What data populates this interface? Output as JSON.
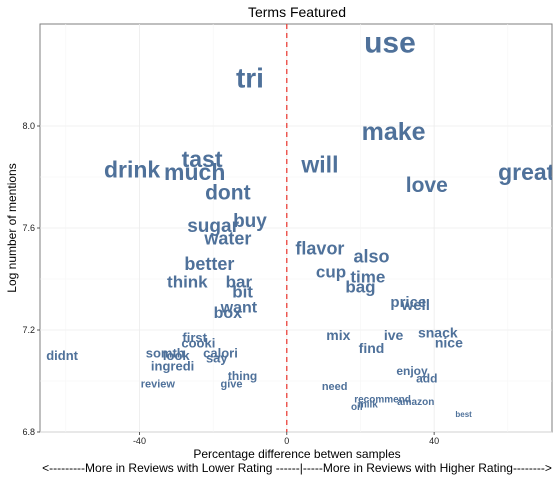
{
  "chart_data": {
    "type": "scatter",
    "title": "Terms Featured",
    "xlabel": "Percentage difference betwen samples",
    "xlabel_sub": "<---------More in Reviews with Lower Rating ------|-----More in Reviews with Higher Rating-------->",
    "ylabel": "Log number of mentions",
    "xlim": [
      -67,
      72
    ],
    "ylim": [
      6.8,
      8.4
    ],
    "x_ticks": [
      -40,
      0,
      40
    ],
    "x_tick_labels": [
      "-40",
      "0",
      "40"
    ],
    "y_ticks": [
      6.8,
      7.2,
      7.6,
      8.0
    ],
    "y_tick_labels": [
      "6.8",
      "7.2",
      "7.6",
      "8.0"
    ],
    "reference_line": {
      "x": 0,
      "color": "#e8322b",
      "style": "dashed"
    },
    "grid": true,
    "points": [
      {
        "label": "use",
        "x": 28,
        "y": 8.33,
        "size": 30
      },
      {
        "label": "tri",
        "x": -10,
        "y": 8.19,
        "size": 28
      },
      {
        "label": "make",
        "x": 29,
        "y": 7.98,
        "size": 25
      },
      {
        "label": "great",
        "x": 65,
        "y": 7.82,
        "size": 23
      },
      {
        "label": "tast",
        "x": -23,
        "y": 7.87,
        "size": 23
      },
      {
        "label": "drink",
        "x": -42,
        "y": 7.83,
        "size": 23
      },
      {
        "label": "much",
        "x": -25,
        "y": 7.82,
        "size": 23
      },
      {
        "label": "will",
        "x": 9,
        "y": 7.85,
        "size": 23
      },
      {
        "label": "love",
        "x": 38,
        "y": 7.77,
        "size": 21
      },
      {
        "label": "dont",
        "x": -16,
        "y": 7.74,
        "size": 21
      },
      {
        "label": "buy",
        "x": -10,
        "y": 7.63,
        "size": 19
      },
      {
        "label": "sugar",
        "x": -20,
        "y": 7.61,
        "size": 19
      },
      {
        "label": "water",
        "x": -16,
        "y": 7.56,
        "size": 18
      },
      {
        "label": "flavor",
        "x": 9,
        "y": 7.52,
        "size": 18
      },
      {
        "label": "also",
        "x": 23,
        "y": 7.49,
        "size": 18
      },
      {
        "label": "better",
        "x": -21,
        "y": 7.46,
        "size": 18
      },
      {
        "label": "cup",
        "x": 12,
        "y": 7.43,
        "size": 17
      },
      {
        "label": "time",
        "x": 22,
        "y": 7.41,
        "size": 17
      },
      {
        "label": "think",
        "x": -27,
        "y": 7.39,
        "size": 17
      },
      {
        "label": "bar",
        "x": -13,
        "y": 7.39,
        "size": 17
      },
      {
        "label": "bag",
        "x": 20,
        "y": 7.37,
        "size": 17
      },
      {
        "label": "bit",
        "x": -12,
        "y": 7.35,
        "size": 17
      },
      {
        "label": "price",
        "x": 33,
        "y": 7.31,
        "size": 15
      },
      {
        "label": "well",
        "x": 35,
        "y": 7.3,
        "size": 15
      },
      {
        "label": "want",
        "x": -13,
        "y": 7.29,
        "size": 16
      },
      {
        "label": "box",
        "x": -16,
        "y": 7.27,
        "size": 16
      },
      {
        "label": "snack",
        "x": 41,
        "y": 7.19,
        "size": 14
      },
      {
        "label": "mix",
        "x": 14,
        "y": 7.18,
        "size": 14
      },
      {
        "label": "ive",
        "x": 29,
        "y": 7.18,
        "size": 14
      },
      {
        "label": "first",
        "x": -25,
        "y": 7.17,
        "size": 13
      },
      {
        "label": "cooki",
        "x": -24,
        "y": 7.15,
        "size": 13
      },
      {
        "label": "nice",
        "x": 44,
        "y": 7.15,
        "size": 14
      },
      {
        "label": "find",
        "x": 23,
        "y": 7.13,
        "size": 14
      },
      {
        "label": "calori",
        "x": -18,
        "y": 7.11,
        "size": 13
      },
      {
        "label": "somth",
        "x": -33,
        "y": 7.11,
        "size": 13
      },
      {
        "label": "look",
        "x": -30,
        "y": 7.1,
        "size": 13
      },
      {
        "label": "didnt",
        "x": -61,
        "y": 7.1,
        "size": 13
      },
      {
        "label": "say",
        "x": -19,
        "y": 7.09,
        "size": 13
      },
      {
        "label": "ingredi",
        "x": -31,
        "y": 7.06,
        "size": 13
      },
      {
        "label": "enjoy",
        "x": 34,
        "y": 7.04,
        "size": 12
      },
      {
        "label": "thing",
        "x": -12,
        "y": 7.02,
        "size": 12
      },
      {
        "label": "add",
        "x": 38,
        "y": 7.01,
        "size": 12
      },
      {
        "label": "review",
        "x": -35,
        "y": 6.99,
        "size": 11
      },
      {
        "label": "give",
        "x": -15,
        "y": 6.99,
        "size": 11
      },
      {
        "label": "need",
        "x": 13,
        "y": 6.98,
        "size": 11
      },
      {
        "label": "recommend",
        "x": 26,
        "y": 6.93,
        "size": 10
      },
      {
        "label": "amazon",
        "x": 35,
        "y": 6.92,
        "size": 10
      },
      {
        "label": "milk",
        "x": 22,
        "y": 6.91,
        "size": 10
      },
      {
        "label": "oil",
        "x": 19,
        "y": 6.9,
        "size": 10
      },
      {
        "label": "best",
        "x": 48,
        "y": 6.87,
        "size": 8
      }
    ]
  }
}
